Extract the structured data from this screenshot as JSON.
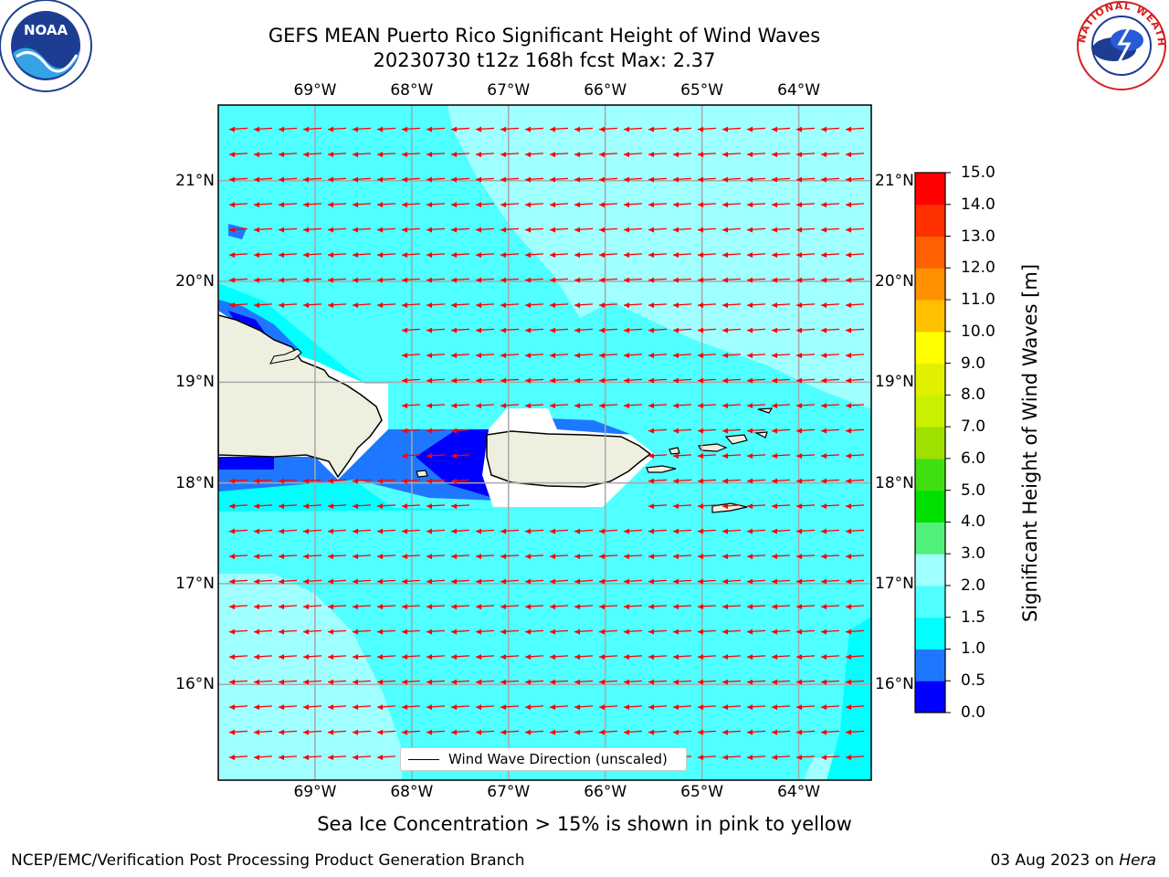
{
  "title": {
    "line1": "GEFS MEAN Puerto Rico Significant Height of Wind Waves",
    "line2": "20230730 t12z 168h fcst   Max: 2.37"
  },
  "axes": {
    "lon_labels": [
      "69°W",
      "68°W",
      "67°W",
      "66°W",
      "65°W",
      "64°W"
    ],
    "lat_labels": [
      "21°N",
      "20°N",
      "19°N",
      "18°N",
      "17°N",
      "16°N"
    ],
    "lon_values": [
      -69,
      -68,
      -67,
      -66,
      -65,
      -64
    ],
    "lat_values": [
      21,
      20,
      19,
      18,
      17,
      16
    ],
    "lon_range": [
      -70.0,
      -63.25
    ],
    "lat_range": [
      15.05,
      21.75
    ]
  },
  "colorbar": {
    "label": "Significant Height of Wind Waves [m]",
    "tick_labels": [
      "0.0",
      "0.5",
      "1.0",
      "1.5",
      "2.0",
      "3.0",
      "4.0",
      "5.0",
      "6.0",
      "7.0",
      "8.0",
      "9.0",
      "10.0",
      "11.0",
      "12.0",
      "13.0",
      "14.0",
      "15.0"
    ],
    "levels": [
      0,
      0.5,
      1,
      1.5,
      2,
      3,
      4,
      5,
      6,
      7,
      8,
      9,
      10,
      11,
      12,
      13,
      14,
      15
    ],
    "colors": [
      "#0000ff",
      "#1e78ff",
      "#00ffff",
      "#50ffff",
      "#a0ffff",
      "#50f07a",
      "#00e000",
      "#40e010",
      "#a0e000",
      "#c8f000",
      "#e0f000",
      "#ffff00",
      "#ffc000",
      "#ff9000",
      "#ff6000",
      "#ff3000",
      "#ff0000"
    ]
  },
  "legend": {
    "label": "Wind Wave Direction (unscaled)"
  },
  "arrow_color": "#ff0000",
  "land_color": "#efefe0",
  "note": "Sea Ice Concentration > 15% is shown in pink to yellow",
  "footer": {
    "left": "NCEP/EMC/Verification Post Processing Product Generation Branch",
    "right_prefix": "03 Aug 2023 on ",
    "right_machine": "Hera"
  },
  "logos": {
    "left": "NOAA",
    "right": "NATIONAL WEATHER SERVICE"
  }
}
